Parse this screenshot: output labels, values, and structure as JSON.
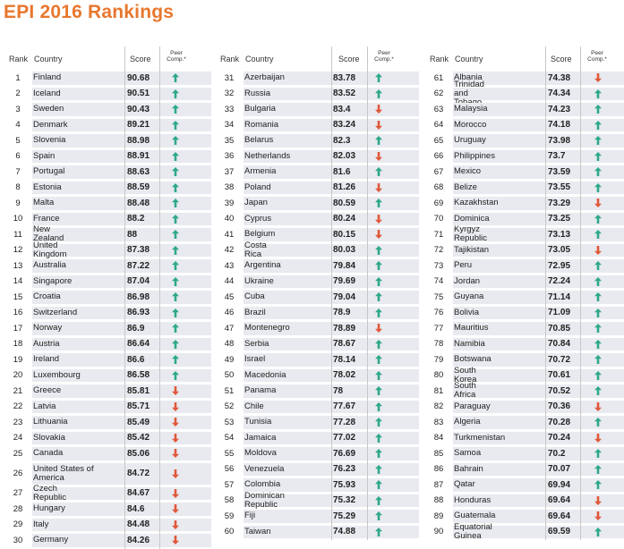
{
  "title": "EPI 2016 Rankings",
  "headers": {
    "rank": "Rank",
    "country": "Country",
    "score": "Score",
    "peer_line1": "Peer",
    "peer_line2": "Comp.*"
  },
  "colors": {
    "title": "#e8772e",
    "up": "#2ea88a",
    "down": "#e0583a",
    "band": "#e8eaef"
  },
  "columns": [
    {
      "rows": [
        {
          "rank": "1",
          "country": "Finland",
          "score": "90.68",
          "trend": "up"
        },
        {
          "rank": "2",
          "country": "Iceland",
          "score": "90.51",
          "trend": "up"
        },
        {
          "rank": "3",
          "country": "Sweden",
          "score": "90.43",
          "trend": "up"
        },
        {
          "rank": "4",
          "country": "Denmark",
          "score": "89.21",
          "trend": "up"
        },
        {
          "rank": "5",
          "country": "Slovenia",
          "score": "88.98",
          "trend": "up"
        },
        {
          "rank": "6",
          "country": "Spain",
          "score": "88.91",
          "trend": "up"
        },
        {
          "rank": "7",
          "country": "Portugal",
          "score": "88.63",
          "trend": "up"
        },
        {
          "rank": "8",
          "country": "Estonia",
          "score": "88.59",
          "trend": "up"
        },
        {
          "rank": "9",
          "country": "Malta",
          "score": "88.48",
          "trend": "up"
        },
        {
          "rank": "10",
          "country": "France",
          "score": "88.2",
          "trend": "up"
        },
        {
          "rank": "11",
          "country": "New Zealand",
          "score": "88",
          "trend": "up"
        },
        {
          "rank": "12",
          "country": "United Kingdom",
          "score": "87.38",
          "trend": "up"
        },
        {
          "rank": "13",
          "country": "Australia",
          "score": "87.22",
          "trend": "up"
        },
        {
          "rank": "14",
          "country": "Singapore",
          "score": "87.04",
          "trend": "up"
        },
        {
          "rank": "15",
          "country": "Croatia",
          "score": "86.98",
          "trend": "up"
        },
        {
          "rank": "16",
          "country": "Switzerland",
          "score": "86.93",
          "trend": "up"
        },
        {
          "rank": "17",
          "country": "Norway",
          "score": "86.9",
          "trend": "up"
        },
        {
          "rank": "18",
          "country": "Austria",
          "score": "86.64",
          "trend": "up"
        },
        {
          "rank": "19",
          "country": "Ireland",
          "score": "86.6",
          "trend": "up"
        },
        {
          "rank": "20",
          "country": "Luxembourg",
          "score": "86.58",
          "trend": "up"
        },
        {
          "rank": "21",
          "country": "Greece",
          "score": "85.81",
          "trend": "down"
        },
        {
          "rank": "22",
          "country": "Latvia",
          "score": "85.71",
          "trend": "down"
        },
        {
          "rank": "23",
          "country": "Lithuania",
          "score": "85.49",
          "trend": "down"
        },
        {
          "rank": "24",
          "country": "Slovakia",
          "score": "85.42",
          "trend": "down"
        },
        {
          "rank": "25",
          "country": "Canada",
          "score": "85.06",
          "trend": "down"
        },
        {
          "rank": "26",
          "country": "United States of America",
          "score": "84.72",
          "trend": "down"
        },
        {
          "rank": "27",
          "country": "Czech Republic",
          "score": "84.67",
          "trend": "down"
        },
        {
          "rank": "28",
          "country": "Hungary",
          "score": "84.6",
          "trend": "down"
        },
        {
          "rank": "29",
          "country": "Italy",
          "score": "84.48",
          "trend": "down"
        },
        {
          "rank": "30",
          "country": "Germany",
          "score": "84.26",
          "trend": "down"
        }
      ]
    },
    {
      "rows": [
        {
          "rank": "31",
          "country": "Azerbaijan",
          "score": "83.78",
          "trend": "up"
        },
        {
          "rank": "32",
          "country": "Russia",
          "score": "83.52",
          "trend": "up"
        },
        {
          "rank": "33",
          "country": "Bulgaria",
          "score": "83.4",
          "trend": "down"
        },
        {
          "rank": "34",
          "country": "Romania",
          "score": "83.24",
          "trend": "down"
        },
        {
          "rank": "35",
          "country": "Belarus",
          "score": "82.3",
          "trend": "up"
        },
        {
          "rank": "36",
          "country": "Netherlands",
          "score": "82.03",
          "trend": "down"
        },
        {
          "rank": "37",
          "country": "Armenia",
          "score": "81.6",
          "trend": "up"
        },
        {
          "rank": "38",
          "country": "Poland",
          "score": "81.26",
          "trend": "down"
        },
        {
          "rank": "39",
          "country": "Japan",
          "score": "80.59",
          "trend": "up"
        },
        {
          "rank": "40",
          "country": "Cyprus",
          "score": "80.24",
          "trend": "down"
        },
        {
          "rank": "41",
          "country": "Belgium",
          "score": "80.15",
          "trend": "down"
        },
        {
          "rank": "42",
          "country": "Costa Rica",
          "score": "80.03",
          "trend": "up"
        },
        {
          "rank": "43",
          "country": "Argentina",
          "score": "79.84",
          "trend": "up"
        },
        {
          "rank": "44",
          "country": "Ukraine",
          "score": "79.69",
          "trend": "up"
        },
        {
          "rank": "45",
          "country": "Cuba",
          "score": "79.04",
          "trend": "up"
        },
        {
          "rank": "46",
          "country": "Brazil",
          "score": "78.9",
          "trend": "up"
        },
        {
          "rank": "47",
          "country": "Montenegro",
          "score": "78.89",
          "trend": "down"
        },
        {
          "rank": "48",
          "country": "Serbia",
          "score": "78.67",
          "trend": "up"
        },
        {
          "rank": "49",
          "country": "Israel",
          "score": "78.14",
          "trend": "up"
        },
        {
          "rank": "50",
          "country": "Macedonia",
          "score": "78.02",
          "trend": "up"
        },
        {
          "rank": "51",
          "country": "Panama",
          "score": "78",
          "trend": "up"
        },
        {
          "rank": "52",
          "country": "Chile",
          "score": "77.67",
          "trend": "up"
        },
        {
          "rank": "53",
          "country": "Tunisia",
          "score": "77.28",
          "trend": "up"
        },
        {
          "rank": "54",
          "country": "Jamaica",
          "score": "77.02",
          "trend": "up"
        },
        {
          "rank": "55",
          "country": "Moldova",
          "score": "76.69",
          "trend": "up"
        },
        {
          "rank": "56",
          "country": "Venezuela",
          "score": "76.23",
          "trend": "up"
        },
        {
          "rank": "57",
          "country": "Colombia",
          "score": "75.93",
          "trend": "up"
        },
        {
          "rank": "58",
          "country": "Dominican Republic",
          "score": "75.32",
          "trend": "up"
        },
        {
          "rank": "59",
          "country": "Fiji",
          "score": "75.29",
          "trend": "up"
        },
        {
          "rank": "60",
          "country": "Taiwan",
          "score": "74.88",
          "trend": "up"
        }
      ]
    },
    {
      "rows": [
        {
          "rank": "61",
          "country": "Albania",
          "score": "74.38",
          "trend": "down"
        },
        {
          "rank": "62",
          "country": "Trinidad and Tobago",
          "score": "74.34",
          "trend": "up"
        },
        {
          "rank": "63",
          "country": "Malaysia",
          "score": "74.23",
          "trend": "up"
        },
        {
          "rank": "64",
          "country": "Morocco",
          "score": "74.18",
          "trend": "up"
        },
        {
          "rank": "65",
          "country": "Uruguay",
          "score": "73.98",
          "trend": "up"
        },
        {
          "rank": "66",
          "country": "Philippines",
          "score": "73.7",
          "trend": "up"
        },
        {
          "rank": "67",
          "country": "Mexico",
          "score": "73.59",
          "trend": "up"
        },
        {
          "rank": "68",
          "country": "Belize",
          "score": "73.55",
          "trend": "up"
        },
        {
          "rank": "69",
          "country": "Kazakhstan",
          "score": "73.29",
          "trend": "down"
        },
        {
          "rank": "70",
          "country": "Dominica",
          "score": "73.25",
          "trend": "up"
        },
        {
          "rank": "71",
          "country": "Kyrgyz Republic",
          "score": "73.13",
          "trend": "up"
        },
        {
          "rank": "72",
          "country": "Tajikistan",
          "score": "73.05",
          "trend": "down"
        },
        {
          "rank": "73",
          "country": "Peru",
          "score": "72.95",
          "trend": "up"
        },
        {
          "rank": "74",
          "country": "Jordan",
          "score": "72.24",
          "trend": "up"
        },
        {
          "rank": "75",
          "country": "Guyana",
          "score": "71.14",
          "trend": "up"
        },
        {
          "rank": "76",
          "country": "Bolivia",
          "score": "71.09",
          "trend": "up"
        },
        {
          "rank": "77",
          "country": "Mauritius",
          "score": "70.85",
          "trend": "up"
        },
        {
          "rank": "78",
          "country": "Namibia",
          "score": "70.84",
          "trend": "up"
        },
        {
          "rank": "79",
          "country": "Botswana",
          "score": "70.72",
          "trend": "up"
        },
        {
          "rank": "80",
          "country": "South Korea",
          "score": "70.61",
          "trend": "up"
        },
        {
          "rank": "81",
          "country": "South Africa",
          "score": "70.52",
          "trend": "up"
        },
        {
          "rank": "82",
          "country": "Paraguay",
          "score": "70.36",
          "trend": "down"
        },
        {
          "rank": "83",
          "country": "Algeria",
          "score": "70.28",
          "trend": "up"
        },
        {
          "rank": "84",
          "country": "Turkmenistan",
          "score": "70.24",
          "trend": "down"
        },
        {
          "rank": "85",
          "country": "Samoa",
          "score": "70.2",
          "trend": "up"
        },
        {
          "rank": "86",
          "country": "Bahrain",
          "score": "70.07",
          "trend": "up"
        },
        {
          "rank": "87",
          "country": "Qatar",
          "score": "69.94",
          "trend": "up"
        },
        {
          "rank": "88",
          "country": "Honduras",
          "score": "69.64",
          "trend": "down"
        },
        {
          "rank": "89",
          "country": "Guatemala",
          "score": "69.64",
          "trend": "down"
        },
        {
          "rank": "90",
          "country": "Equatorial Guinea",
          "score": "69.59",
          "trend": "up"
        }
      ]
    }
  ]
}
